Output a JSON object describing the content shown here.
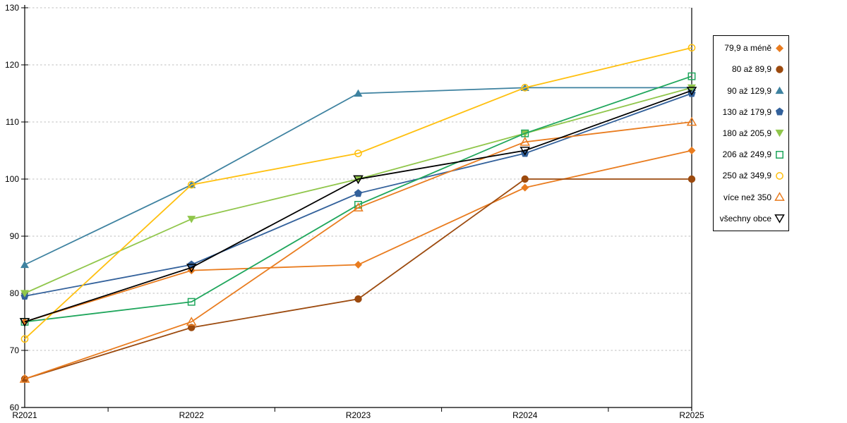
{
  "chart_data": {
    "type": "line",
    "title": "",
    "xlabel": "",
    "ylabel": "",
    "categories": [
      "R2021",
      "R2022",
      "R2023",
      "R2024",
      "R2025"
    ],
    "y_axis": {
      "min": 60,
      "max": 130,
      "step": 10,
      "ticks": [
        60,
        70,
        80,
        90,
        100,
        110,
        120,
        130
      ]
    },
    "grid": "dashed-horizontal",
    "grid_color": "#BFBFBF",
    "axis_color": "#000000",
    "legend_position": "right",
    "series": [
      {
        "name": "79,9 a méně",
        "marker": "diamond",
        "color": "#E97C1F",
        "values": [
          75,
          84,
          85,
          98.5,
          105
        ]
      },
      {
        "name": "80 až 89,9",
        "marker": "circle",
        "color": "#9C4A0E",
        "values": [
          65,
          74,
          79,
          100,
          100
        ]
      },
      {
        "name": "90 až 129,9",
        "marker": "triangle-up",
        "color": "#3E82A0",
        "values": [
          85,
          99,
          115,
          116,
          116
        ]
      },
      {
        "name": "130 až 179,9",
        "marker": "pentagon",
        "color": "#33619B",
        "values": [
          79.5,
          85,
          97.5,
          104.5,
          115
        ]
      },
      {
        "name": "180 až 205,9",
        "marker": "triangle-down",
        "color": "#90C64B",
        "values": [
          80,
          93,
          100,
          108,
          116
        ]
      },
      {
        "name": "206 až 249,9",
        "marker": "square-open",
        "color": "#1FA65C",
        "values": [
          75,
          78.5,
          95.5,
          108,
          118
        ]
      },
      {
        "name": "250 až 349,9",
        "marker": "circle-open",
        "color": "#FFC010",
        "values": [
          72,
          99,
          104.5,
          116,
          123
        ]
      },
      {
        "name": "více než 350",
        "marker": "triangle-up-open",
        "color": "#E97C1F",
        "values": [
          65,
          75,
          95,
          106.5,
          110
        ]
      },
      {
        "name": "všechny obce",
        "marker": "triangle-down-open",
        "color": "#000000",
        "values": [
          75,
          84.5,
          100,
          105,
          115.5
        ]
      }
    ]
  }
}
